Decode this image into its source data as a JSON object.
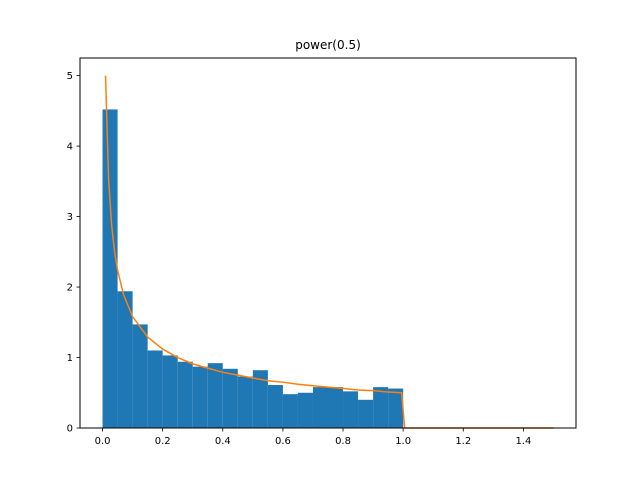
{
  "chart_data": {
    "type": "bar",
    "title": "power(0.5)",
    "xlabel": "",
    "ylabel": "",
    "xlim": [
      -0.075,
      1.575
    ],
    "ylim": [
      0,
      5.25
    ],
    "xticks": [
      "0.0",
      "0.2",
      "0.4",
      "0.6",
      "0.8",
      "1.0",
      "1.2",
      "1.4"
    ],
    "yticks": [
      "0",
      "1",
      "2",
      "3",
      "4",
      "5"
    ],
    "grid": false,
    "legend": "none",
    "colors": {
      "histogram": "#1f77b4",
      "curve": "#ff7f0e",
      "axes": "#000000"
    },
    "series": [
      {
        "kind": "histogram",
        "bin_edges": [
          0.0,
          0.05,
          0.1,
          0.15,
          0.2,
          0.25,
          0.3,
          0.35,
          0.4,
          0.45,
          0.5,
          0.55,
          0.6,
          0.65,
          0.7,
          0.75,
          0.8,
          0.85,
          0.9,
          0.95,
          1.0
        ],
        "values": [
          4.52,
          1.94,
          1.47,
          1.1,
          1.03,
          0.94,
          0.87,
          0.92,
          0.84,
          0.73,
          0.82,
          0.61,
          0.48,
          0.5,
          0.58,
          0.58,
          0.52,
          0.4,
          0.58,
          0.56
        ]
      },
      {
        "kind": "line",
        "x": [
          0.01,
          0.02,
          0.03,
          0.04,
          0.05,
          0.07,
          0.1,
          0.15,
          0.2,
          0.25,
          0.3,
          0.35,
          0.4,
          0.45,
          0.5,
          0.55,
          0.6,
          0.65,
          0.7,
          0.75,
          0.8,
          0.85,
          0.9,
          0.95,
          0.995,
          1.005,
          1.1,
          1.2,
          1.3,
          1.4,
          1.5
        ],
        "y": [
          5.0,
          3.54,
          2.89,
          2.5,
          2.24,
          1.89,
          1.58,
          1.29,
          1.12,
          1.0,
          0.91,
          0.85,
          0.79,
          0.75,
          0.71,
          0.67,
          0.65,
          0.62,
          0.6,
          0.58,
          0.56,
          0.54,
          0.53,
          0.51,
          0.5,
          0,
          0,
          0,
          0,
          0,
          0
        ]
      }
    ]
  }
}
